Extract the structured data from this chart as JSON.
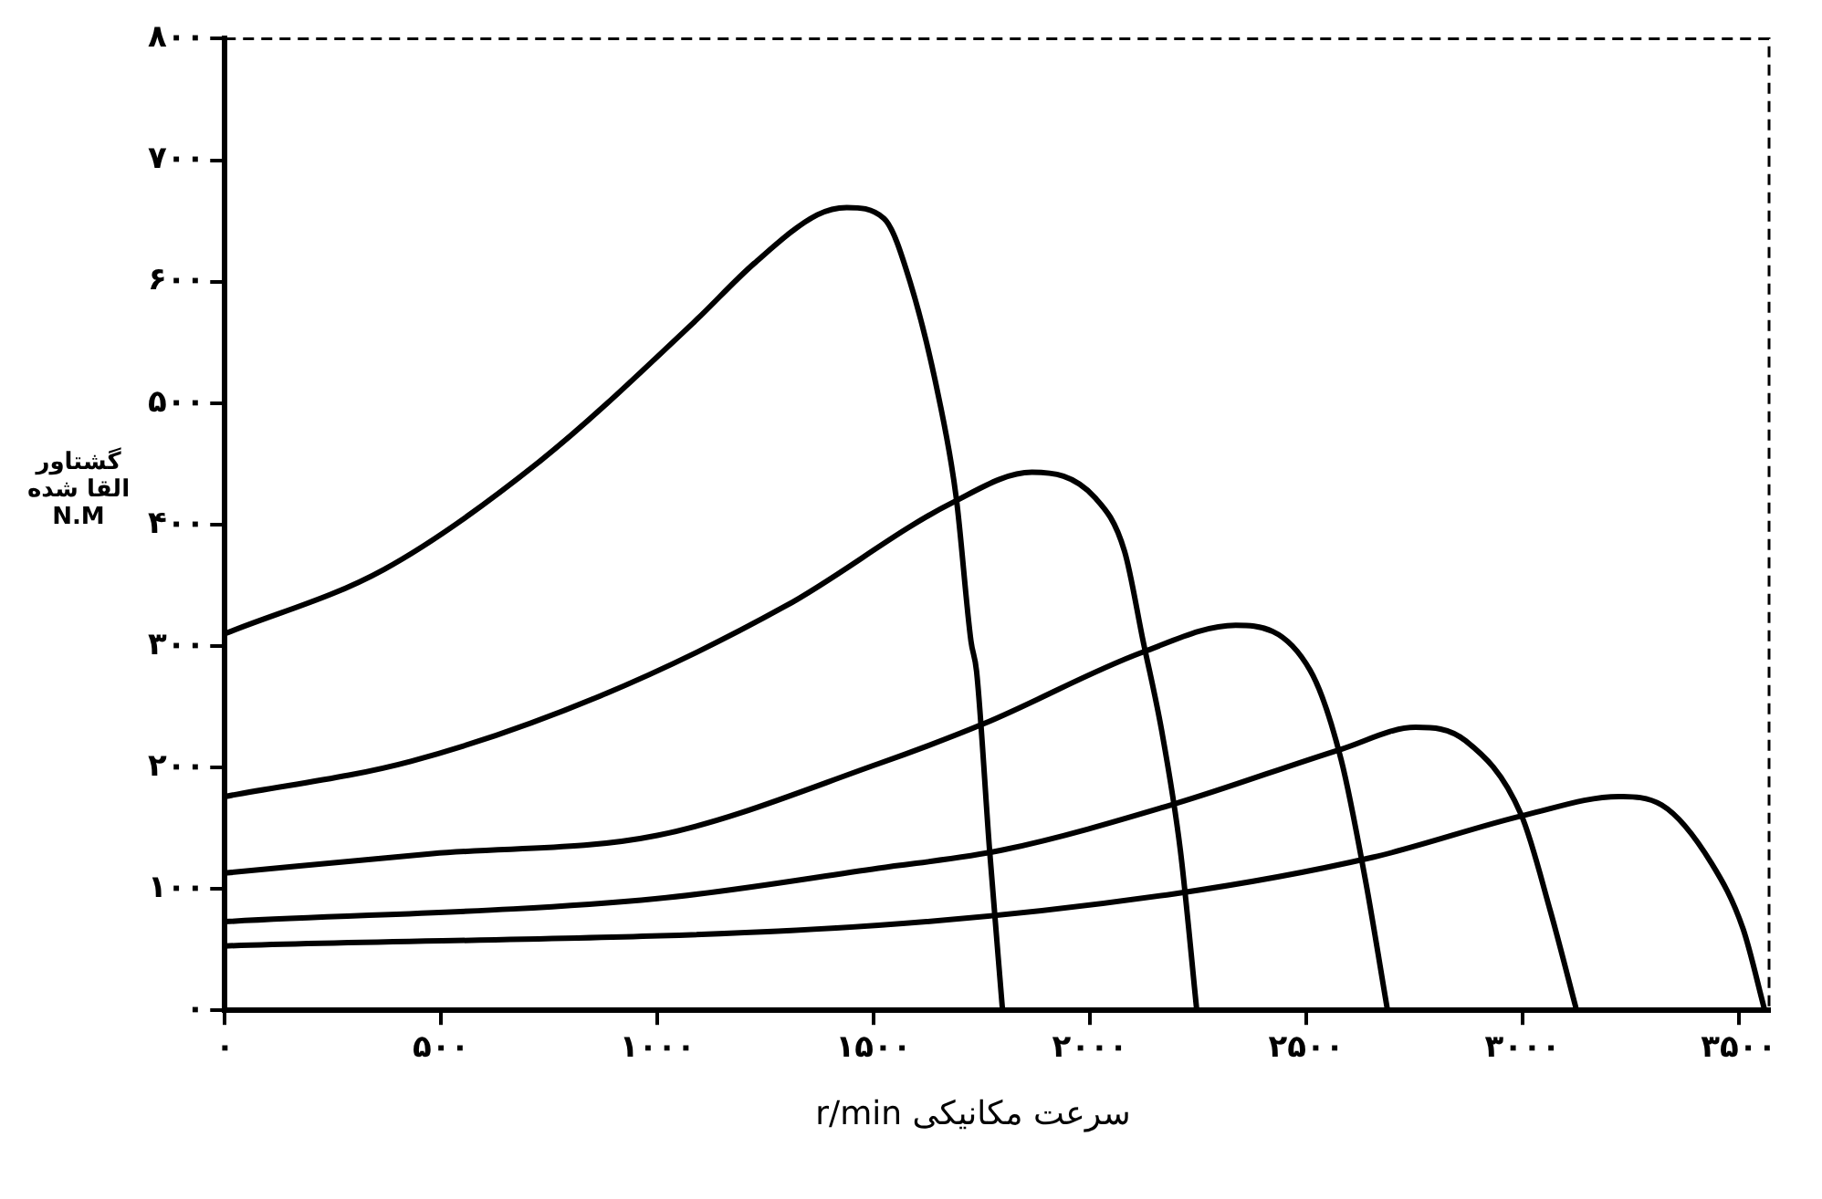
{
  "chart_data": {
    "type": "line",
    "xlabel": "سرعت مکانیکی r/min",
    "ylabel": "گشتاور\nالقا شده\nN.M",
    "xlim": [
      0,
      3570
    ],
    "ylim": [
      0,
      800
    ],
    "xticks": [
      {
        "value": 0,
        "label": "۰"
      },
      {
        "value": 500,
        "label": "۵۰۰"
      },
      {
        "value": 1000,
        "label": "۱۰۰۰"
      },
      {
        "value": 1500,
        "label": "۱۵۰۰"
      },
      {
        "value": 2000,
        "label": "۲۰۰۰"
      },
      {
        "value": 2500,
        "label": "۲۵۰۰"
      },
      {
        "value": 3000,
        "label": "۳۰۰۰"
      },
      {
        "value": 3500,
        "label": "۳۵۰۰"
      }
    ],
    "yticks": [
      {
        "value": 0,
        "label": "۰"
      },
      {
        "value": 100,
        "label": "۱۰۰"
      },
      {
        "value": 200,
        "label": "۲۰۰"
      },
      {
        "value": 300,
        "label": "۳۰۰"
      },
      {
        "value": 400,
        "label": "۴۰۰"
      },
      {
        "value": 500,
        "label": "۵۰۰"
      },
      {
        "value": 600,
        "label": "۶۰۰"
      },
      {
        "value": 700,
        "label": "۷۰۰"
      },
      {
        "value": 800,
        "label": "۸۰۰"
      }
    ],
    "grid": false,
    "legend": false,
    "marker": "none",
    "line_style": "solid",
    "series": [
      {
        "color": "#000000",
        "x": [
          0,
          368,
          728,
          1083,
          1224,
          1370,
          1438,
          1524,
          1584,
          1652,
          1691,
          1725,
          1738,
          1768,
          1798
        ],
        "values": [
          310,
          363,
          452,
          566,
          615,
          655,
          661,
          652,
          600,
          502,
          422,
          304,
          279,
          132,
          0
        ]
      },
      {
        "color": "#000000",
        "x": [
          0,
          430,
          869,
          1297,
          1682,
          1866,
          2012,
          2080,
          2123,
          2166,
          2209,
          2247
        ],
        "values": [
          176,
          205,
          259,
          333,
          418,
          443,
          422,
          378,
          304,
          230,
          132,
          0
        ]
      },
      {
        "color": "#000000",
        "x": [
          0,
          480,
          1000,
          1511,
          1755,
          2123,
          2337,
          2509,
          2581,
          2637,
          2688
        ],
        "values": [
          113,
          129,
          144,
          203,
          236,
          295,
          317,
          280,
          206,
          107,
          0
        ]
      },
      {
        "color": "#000000",
        "x": [
          0,
          1000,
          1511,
          1798,
          2196,
          2581,
          2753,
          2868,
          2997,
          3065,
          3125
        ],
        "values": [
          73,
          92,
          117,
          132,
          170,
          215,
          233,
          222,
          161,
          81,
          0
        ]
      },
      {
        "color": "#000000",
        "x": [
          0,
          1511,
          2196,
          2654,
          3009,
          3223,
          3322,
          3437,
          3510,
          3560
        ],
        "values": [
          53,
          70,
          96,
          126,
          161,
          176,
          169,
          121,
          67,
          0
        ]
      }
    ]
  }
}
